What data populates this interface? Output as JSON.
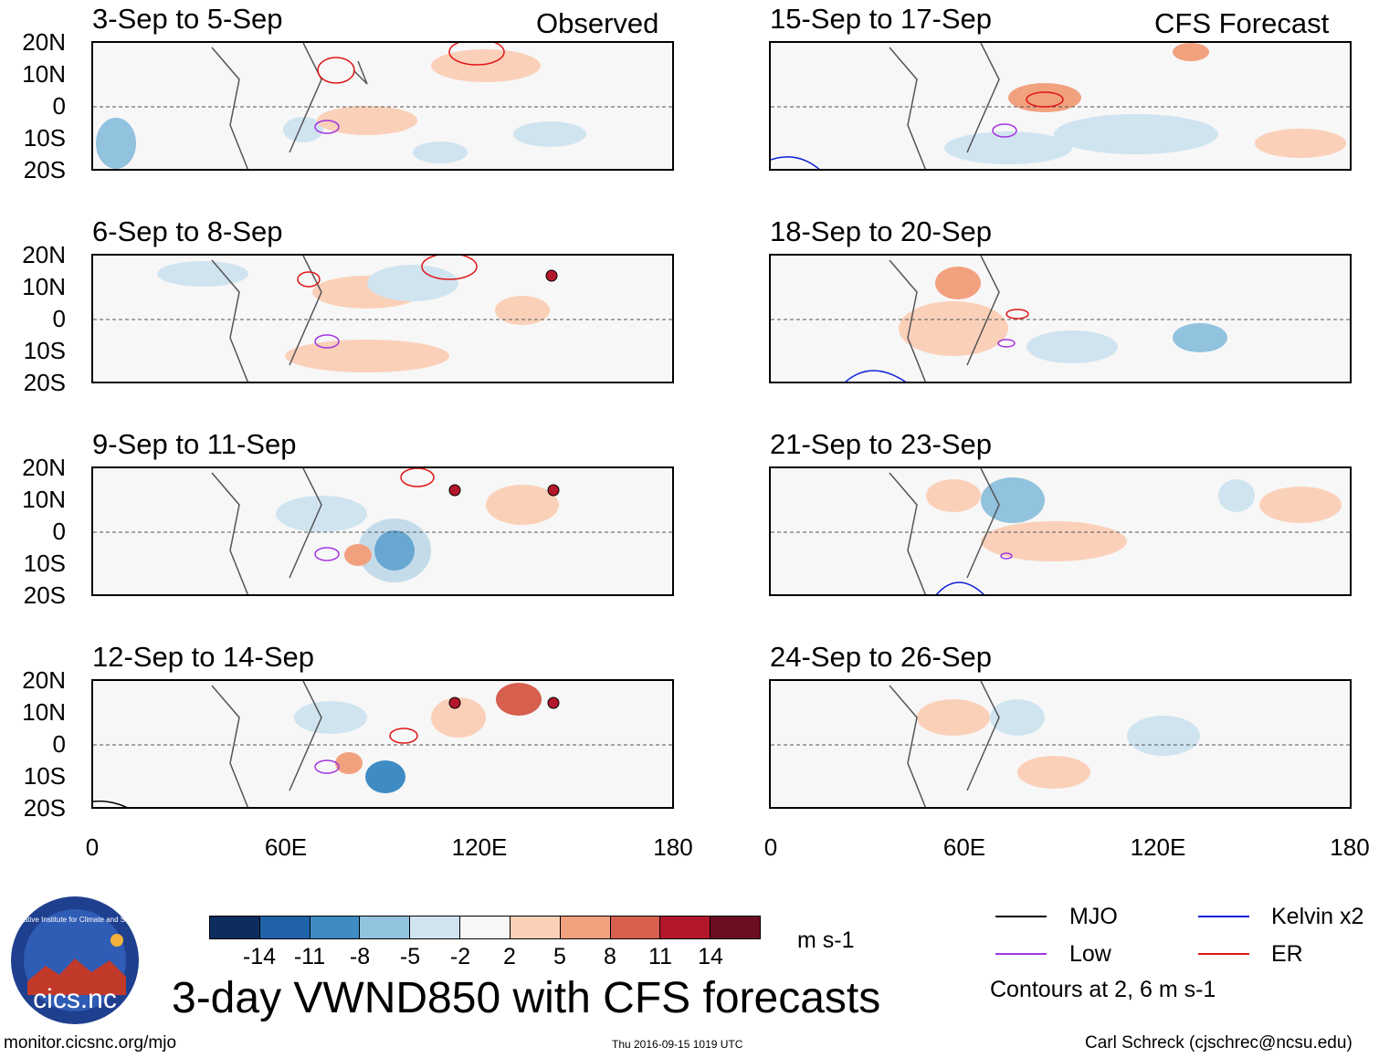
{
  "header": {
    "left_label": "Observed",
    "right_label": "CFS Forecast"
  },
  "panels": [
    {
      "title": "3-Sep to 5-Sep"
    },
    {
      "title": "6-Sep to 8-Sep"
    },
    {
      "title": "9-Sep to 11-Sep"
    },
    {
      "title": "12-Sep to 14-Sep"
    },
    {
      "title": "15-Sep to 17-Sep"
    },
    {
      "title": "18-Sep to 20-Sep"
    },
    {
      "title": "21-Sep to 23-Sep"
    },
    {
      "title": "24-Sep to 26-Sep"
    }
  ],
  "lat_labels": [
    "20N",
    "10N",
    "0",
    "10S",
    "20S"
  ],
  "lon_labels": [
    "0",
    "60E",
    "120E",
    "180"
  ],
  "colorbar": {
    "ticks": [
      "-14",
      "-11",
      "-8",
      "-5",
      "-2",
      "2",
      "5",
      "8",
      "11",
      "14"
    ],
    "colors": [
      "#0c2d5e",
      "#1f62a8",
      "#3f8cc4",
      "#91c2de",
      "#d0e4f0",
      "#f7f7f7",
      "#fbd0b9",
      "#f2a17f",
      "#d65f4e",
      "#b2172b",
      "#6b0e22"
    ],
    "units": "m s-1"
  },
  "title": "3-day VWND850 with CFS forecasts",
  "legend": {
    "items": [
      {
        "label": "MJO",
        "color": "#000000"
      },
      {
        "label": "Kelvin x2",
        "color": "#0b1fd6"
      },
      {
        "label": "Low",
        "color": "#a335e0"
      },
      {
        "label": "ER",
        "color": "#e01515"
      }
    ],
    "note": "Contours at 2, 6 m s-1"
  },
  "logo": {
    "text": "cics.nc",
    "ring_text": "Cooperative Institute for Climate and Satellites"
  },
  "footer": {
    "left": "monitor.cicsnc.org/mjo",
    "center": "Thu 2016-09-15 1019 UTC",
    "right": "Carl Schreck (cjschrec@ncsu.edu)"
  }
}
